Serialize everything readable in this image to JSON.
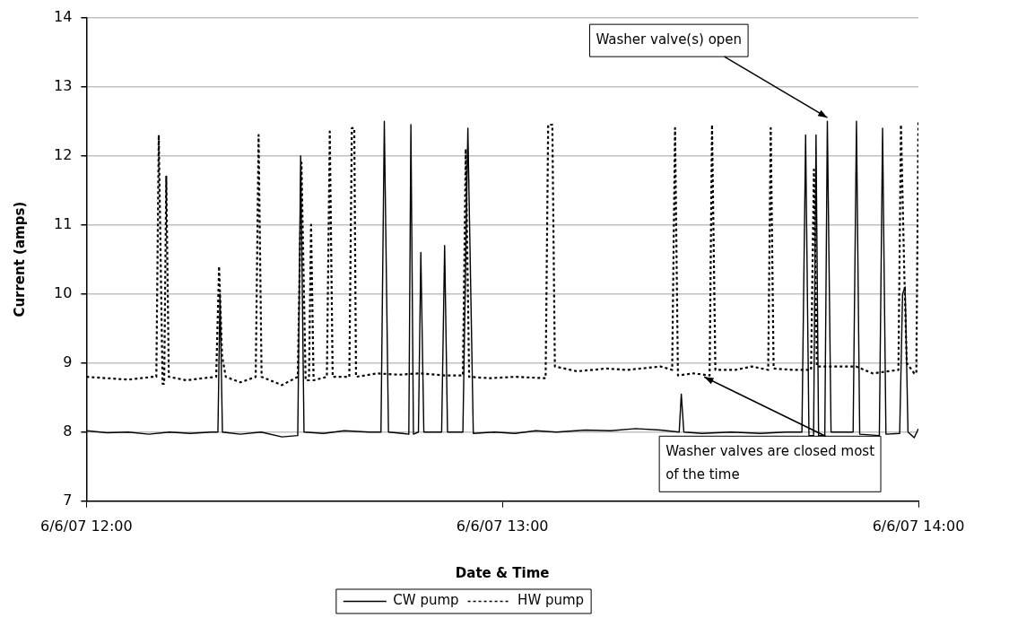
{
  "chart_data": {
    "type": "line",
    "xlabel": "Date & Time",
    "ylabel": "Current (amps)",
    "xlim": [
      "--06-06T12:00",
      "--06-06T14:00"
    ],
    "xticks": [
      {
        "value": "--06-06T12:00",
        "label": "6/6/07 12:00"
      },
      {
        "value": "--06-06T13:00",
        "label": "6/6/07 13:00"
      },
      {
        "value": "--06-06T14:00",
        "label": "6/6/07 14:00"
      }
    ],
    "ylim": [
      7,
      14
    ],
    "yticks": [
      7,
      8,
      9,
      10,
      11,
      12,
      13,
      14
    ],
    "grid": "y",
    "legend": "bottom",
    "marker": "none",
    "annotations": [
      {
        "text": "Washer valve(s) open",
        "x": "--06-06T13:46:52",
        "y": 12.5
      },
      {
        "text": "Washer valves are closed most of the time",
        "x": "--06-06T13:29:06",
        "y": 8.85
      }
    ],
    "series": [
      {
        "name": "CW pump",
        "color": "#000000",
        "line_style": "solid",
        "x": [
          "--06-06T12:00:00",
          "--06-06T12:03:00",
          "--06-06T12:06:00",
          "--06-06T12:09:00",
          "--06-06T12:12:00",
          "--06-06T12:15:00",
          "--06-06T12:18:00",
          "--06-06T12:18:58",
          "--06-06T12:19:16",
          "--06-06T12:19:37",
          "--06-06T12:22:12",
          "--06-06T12:25:12",
          "--06-06T12:28:12",
          "--06-06T12:30:29",
          "--06-06T12:30:54",
          "--06-06T12:31:23",
          "--06-06T12:34:12",
          "--06-06T12:37:12",
          "--06-06T12:40:48",
          "--06-06T12:42:29",
          "--06-06T12:42:58",
          "--06-06T12:43:34",
          "--06-06T12:45:36",
          "--06-06T12:46:30",
          "--06-06T12:46:48",
          "--06-06T12:47:10",
          "--06-06T12:47:53",
          "--06-06T12:48:14",
          "--06-06T12:48:40",
          "--06-06T12:51:14",
          "--06-06T12:51:40",
          "--06-06T12:52:05",
          "--06-06T12:54:18",
          "--06-06T12:55:01",
          "--06-06T12:55:48",
          "--06-06T12:58:48",
          "--06-06T13:01:48",
          "--06-06T13:04:48",
          "--06-06T13:07:48",
          "--06-06T13:12:00",
          "--06-06T13:15:36",
          "--06-06T13:19:12",
          "--06-06T13:22:48",
          "--06-06T13:25:30",
          "--06-06T13:25:48",
          "--06-06T13:26:10",
          "--06-06T13:28:48",
          "--06-06T13:33:00",
          "--06-06T13:37:12",
          "--06-06T13:40:48",
          "--06-06T13:43:12",
          "--06-06T13:43:44",
          "--06-06T13:44:13",
          "--06-06T13:44:53",
          "--06-06T13:45:14",
          "--06-06T13:45:36",
          "--06-06T13:46:30",
          "--06-06T13:46:52",
          "--06-06T13:47:24",
          "--06-06T13:50:35",
          "--06-06T13:51:04",
          "--06-06T13:51:32",
          "--06-06T13:54:22",
          "--06-06T13:54:50",
          "--06-06T13:55:19",
          "--06-06T13:57:18",
          "--06-06T13:57:43",
          "--06-06T13:58:05",
          "--06-06T13:58:30",
          "--06-06T13:59:24",
          "--06-06T14:00:00"
        ],
        "values": [
          8.02,
          7.99,
          8.0,
          7.97,
          8.0,
          7.98,
          8.0,
          8.0,
          10.0,
          8.0,
          7.97,
          8.0,
          7.93,
          7.95,
          12.0,
          8.0,
          7.98,
          8.02,
          8.0,
          8.0,
          12.5,
          8.0,
          7.98,
          7.97,
          12.45,
          7.97,
          8.0,
          10.6,
          8.0,
          8.0,
          10.7,
          8.0,
          8.0,
          12.4,
          7.98,
          8.0,
          7.98,
          8.02,
          8.0,
          8.03,
          8.02,
          8.05,
          8.03,
          8.0,
          8.55,
          8.0,
          7.98,
          8.0,
          7.98,
          8.0,
          8.0,
          12.3,
          7.95,
          7.95,
          12.3,
          7.95,
          7.95,
          12.5,
          8.0,
          8.0,
          12.5,
          7.97,
          7.95,
          12.4,
          7.97,
          7.98,
          10.0,
          10.1,
          8.0,
          7.92,
          8.05
        ]
      },
      {
        "name": "HW pump",
        "color": "#000000",
        "line_style": "dotted",
        "x": [
          "--06-06T12:00:00",
          "--06-06T12:03:00",
          "--06-06T12:06:00",
          "--06-06T12:09:36",
          "--06-06T12:10:05",
          "--06-06T12:10:26",
          "--06-06T12:10:59",
          "--06-06T12:11:13",
          "--06-06T12:11:31",
          "--06-06T12:11:53",
          "--06-06T12:14:24",
          "--06-06T12:16:48",
          "--06-06T12:18:43",
          "--06-06T12:19:08",
          "--06-06T12:19:34",
          "--06-06T12:20:06",
          "--06-06T12:22:12",
          "--06-06T12:24:25",
          "--06-06T12:24:50",
          "--06-06T12:25:16",
          "--06-06T12:28:12",
          "--06-06T12:30:29",
          "--06-06T12:31:01",
          "--06-06T12:31:37",
          "--06-06T12:32:06",
          "--06-06T12:32:24",
          "--06-06T12:32:46",
          "--06-06T12:34:41",
          "--06-06T12:35:06",
          "--06-06T12:35:31",
          "--06-06T12:37:55",
          "--06-06T12:38:17",
          "--06-06T12:38:38",
          "--06-06T12:38:53",
          "--06-06T12:42:00",
          "--06-06T12:45:00",
          "--06-06T12:48:00",
          "--06-06T12:51:36",
          "--06-06T12:54:18",
          "--06-06T12:54:43",
          "--06-06T12:55:12",
          "--06-06T12:58:12",
          "--06-06T13:01:48",
          "--06-06T13:06:14",
          "--06-06T13:06:36",
          "--06-06T13:07:12",
          "--06-06T13:07:34",
          "--06-06T13:10:48",
          "--06-06T13:15:00",
          "--06-06T13:18:00",
          "--06-06T13:22:48",
          "--06-06T13:24:29",
          "--06-06T13:24:54",
          "--06-06T13:25:19",
          "--06-06T13:27:36",
          "--06-06T13:29:53",
          "--06-06T13:30:14",
          "--06-06T13:30:43",
          "--06-06T13:33:36",
          "--06-06T13:36:00",
          "--06-06T13:38:20",
          "--06-06T13:38:42",
          "--06-06T13:39:07",
          "--06-06T13:42:00",
          "--06-06T13:44:31",
          "--06-06T13:44:56",
          "--06-06T13:45:22",
          "--06-06T13:48:00",
          "--06-06T13:51:00",
          "--06-06T13:53:24",
          "--06-06T13:57:07",
          "--06-06T13:57:29",
          "--06-06T13:57:58",
          "--06-06T13:58:19",
          "--06-06T13:59:24",
          "--06-06T13:59:42",
          "--06-06T14:00:00"
        ],
        "values": [
          8.8,
          8.78,
          8.76,
          8.8,
          8.8,
          12.3,
          8.7,
          8.7,
          11.7,
          8.8,
          8.75,
          8.78,
          8.8,
          10.4,
          9.1,
          8.8,
          8.72,
          8.8,
          12.3,
          8.8,
          8.68,
          8.8,
          11.9,
          8.75,
          8.75,
          11.0,
          8.75,
          8.8,
          12.35,
          8.8,
          8.8,
          12.4,
          12.4,
          8.8,
          8.85,
          8.83,
          8.85,
          8.82,
          8.82,
          12.1,
          8.8,
          8.78,
          8.8,
          8.78,
          12.45,
          12.45,
          8.95,
          8.88,
          8.92,
          8.9,
          8.95,
          8.9,
          12.4,
          8.82,
          8.85,
          8.82,
          12.45,
          8.9,
          8.9,
          8.95,
          8.9,
          12.4,
          8.92,
          8.9,
          8.9,
          11.8,
          8.95,
          8.95,
          8.95,
          8.85,
          8.9,
          12.45,
          10.3,
          9.0,
          8.85,
          8.85,
          12.5
        ]
      }
    ]
  }
}
